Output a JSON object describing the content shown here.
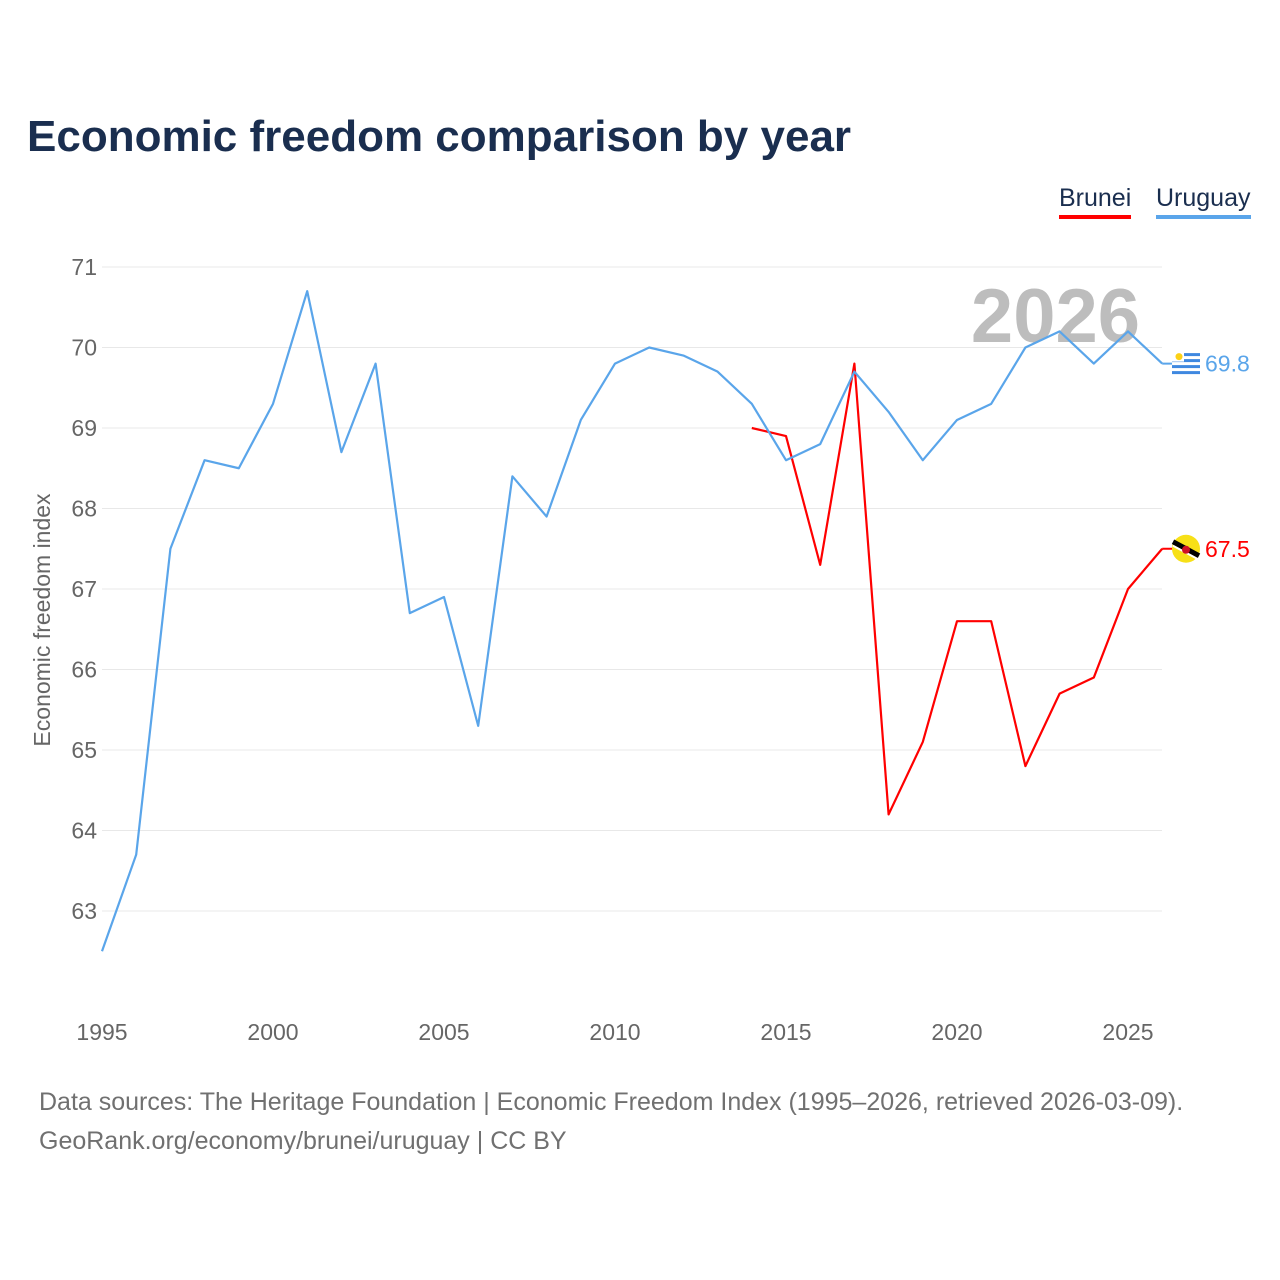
{
  "chart_data": {
    "type": "line",
    "title": "Economic freedom comparison by year",
    "xlabel": "",
    "ylabel": "Economic freedom index",
    "xlim": [
      1995,
      2026
    ],
    "ylim": [
      62,
      71
    ],
    "x_ticks": [
      "1995",
      "2000",
      "2005",
      "2010",
      "2015",
      "2020",
      "2025"
    ],
    "y_ticks": [
      "63",
      "64",
      "65",
      "66",
      "67",
      "68",
      "69",
      "70",
      "71"
    ],
    "grid": true,
    "legend_position": "top-right",
    "year_watermark": "2026",
    "series": [
      {
        "name": "Brunei",
        "color": "#ff0000",
        "end_label": "67.5",
        "x": [
          2014,
          2015,
          2016,
          2017,
          2018,
          2019,
          2020,
          2021,
          2022,
          2023,
          2024,
          2025,
          2026
        ],
        "values": [
          69.0,
          68.9,
          67.3,
          69.8,
          64.2,
          65.1,
          66.6,
          66.6,
          64.8,
          65.7,
          65.9,
          67.0,
          67.5
        ]
      },
      {
        "name": "Uruguay",
        "color": "#5aa5ea",
        "end_label": "69.8",
        "x": [
          1995,
          1996,
          1997,
          1998,
          1999,
          2000,
          2001,
          2002,
          2003,
          2004,
          2005,
          2006,
          2007,
          2008,
          2009,
          2010,
          2011,
          2012,
          2013,
          2014,
          2015,
          2016,
          2017,
          2018,
          2019,
          2020,
          2021,
          2022,
          2023,
          2024,
          2025,
          2026
        ],
        "values": [
          62.5,
          63.7,
          67.5,
          68.6,
          68.5,
          69.3,
          70.7,
          68.7,
          69.8,
          66.7,
          66.9,
          65.3,
          68.4,
          67.9,
          69.1,
          69.8,
          70.0,
          69.9,
          69.7,
          69.3,
          68.6,
          68.8,
          69.7,
          69.2,
          68.6,
          69.1,
          69.3,
          70.0,
          70.2,
          69.8,
          70.2,
          69.8
        ]
      }
    ]
  },
  "footer": {
    "line1": "Data sources: The Heritage Foundation | Economic Freedom Index (1995–2026, retrieved 2026-03-09).",
    "line2": "GeoRank.org/economy/brunei/uruguay | CC BY"
  }
}
